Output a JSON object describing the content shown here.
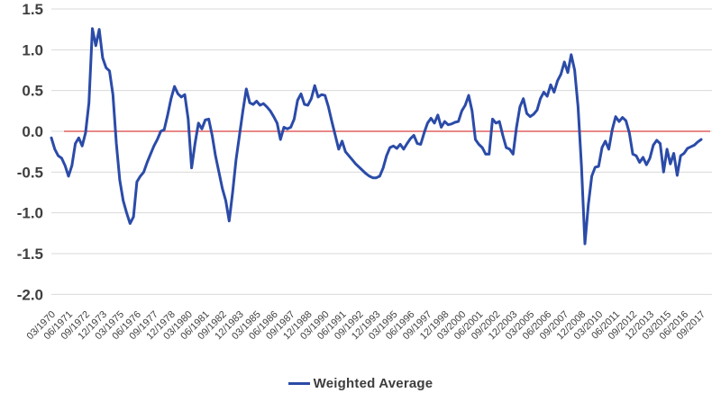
{
  "chart_data": {
    "type": "line",
    "title": "",
    "xlabel": "",
    "ylabel": "",
    "frequency": "quarterly",
    "x_start": "03/1970",
    "x_end": "09/2017",
    "x_tick_labels": [
      "03/1970",
      "06/1971",
      "09/1972",
      "12/1973",
      "03/1975",
      "06/1976",
      "09/1977",
      "12/1978",
      "03/1980",
      "06/1981",
      "09/1982",
      "12/1983",
      "03/1985",
      "06/1986",
      "09/1987",
      "12/1988",
      "03/1990",
      "06/1991",
      "09/1992",
      "12/1993",
      "03/1995",
      "06/1996",
      "09/1997",
      "12/1998",
      "03/2000",
      "06/2001",
      "09/2002",
      "12/2003",
      "03/2005",
      "06/2006",
      "09/2007",
      "12/2008",
      "03/2010",
      "06/2011",
      "09/2012",
      "12/2013",
      "03/2015",
      "06/2016",
      "09/2017"
    ],
    "x_tick_every_n_points": 5,
    "y_tick_labels": [
      "1.5",
      "1.0",
      "0.5",
      "0.0",
      "-0.5",
      "-1.0",
      "-1.5",
      "-2.0"
    ],
    "y_ticks": [
      1.5,
      1.0,
      0.5,
      0.0,
      -0.5,
      -1.0,
      -1.5,
      -2.0
    ],
    "ylim": [
      -2.0,
      1.5
    ],
    "zero_line": 0.0,
    "grid": true,
    "legend_position": "bottom-center",
    "series": [
      {
        "name": "Weighted Average",
        "color": "#2B4BA8",
        "values": [
          -0.08,
          -0.22,
          -0.3,
          -0.33,
          -0.42,
          -0.55,
          -0.42,
          -0.15,
          -0.08,
          -0.18,
          -0.02,
          0.35,
          1.26,
          1.05,
          1.25,
          0.9,
          0.78,
          0.74,
          0.45,
          -0.15,
          -0.6,
          -0.85,
          -1.0,
          -1.13,
          -1.05,
          -0.62,
          -0.55,
          -0.5,
          -0.38,
          -0.28,
          -0.18,
          -0.1,
          0.0,
          0.02,
          0.2,
          0.4,
          0.55,
          0.46,
          0.42,
          0.45,
          0.15,
          -0.45,
          -0.15,
          0.1,
          0.03,
          0.14,
          0.15,
          -0.05,
          -0.3,
          -0.5,
          -0.7,
          -0.85,
          -1.1,
          -0.75,
          -0.35,
          -0.05,
          0.25,
          0.52,
          0.35,
          0.33,
          0.37,
          0.32,
          0.34,
          0.3,
          0.25,
          0.18,
          0.1,
          -0.1,
          0.05,
          0.03,
          0.05,
          0.15,
          0.38,
          0.46,
          0.33,
          0.32,
          0.4,
          0.56,
          0.42,
          0.45,
          0.44,
          0.3,
          0.12,
          -0.05,
          -0.22,
          -0.12,
          -0.25,
          -0.3,
          -0.35,
          -0.4,
          -0.44,
          -0.48,
          -0.52,
          -0.55,
          -0.57,
          -0.57,
          -0.55,
          -0.45,
          -0.3,
          -0.2,
          -0.18,
          -0.21,
          -0.16,
          -0.22,
          -0.15,
          -0.09,
          -0.05,
          -0.15,
          -0.16,
          -0.02,
          0.1,
          0.16,
          0.1,
          0.2,
          0.05,
          0.12,
          0.08,
          0.09,
          0.11,
          0.12,
          0.25,
          0.32,
          0.44,
          0.25,
          -0.1,
          -0.16,
          -0.2,
          -0.28,
          -0.28,
          0.15,
          0.1,
          0.12,
          -0.05,
          -0.2,
          -0.22,
          -0.28,
          0.05,
          0.3,
          0.4,
          0.22,
          0.18,
          0.21,
          0.26,
          0.4,
          0.48,
          0.43,
          0.57,
          0.48,
          0.62,
          0.7,
          0.85,
          0.72,
          0.94,
          0.75,
          0.3,
          -0.43,
          -1.38,
          -0.9,
          -0.55,
          -0.44,
          -0.43,
          -0.2,
          -0.12,
          -0.22,
          0.02,
          0.18,
          0.12,
          0.17,
          0.13,
          -0.02,
          -0.28,
          -0.3,
          -0.38,
          -0.32,
          -0.41,
          -0.33,
          -0.17,
          -0.11,
          -0.15,
          -0.5,
          -0.22,
          -0.4,
          -0.27,
          -0.54,
          -0.3,
          -0.27,
          -0.21,
          -0.19,
          -0.17,
          -0.13,
          -0.1
        ]
      }
    ],
    "colors": {
      "line": "#2B4BA8",
      "zero_line": "#E06060",
      "gridline": "#D9D9D9",
      "axis_text": "#3F3F3F",
      "background": "#FFFFFF"
    }
  }
}
